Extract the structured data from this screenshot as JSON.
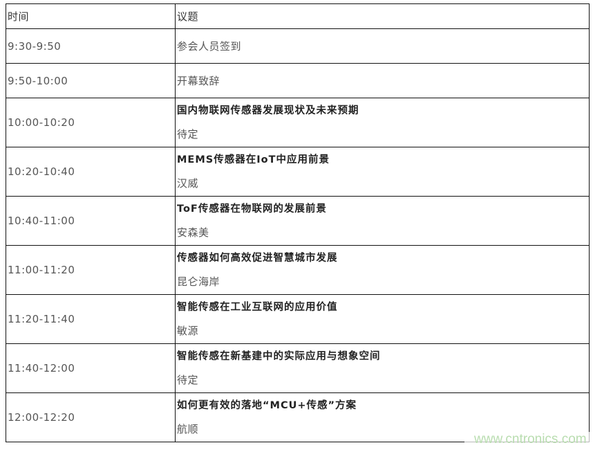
{
  "header": {
    "time": "时间",
    "topic": "议题"
  },
  "rows": [
    {
      "time": "9:30-9:50",
      "topic": "参会人员签到"
    },
    {
      "time": "9:50-10:00",
      "topic": "开幕致辞"
    },
    {
      "time": "10:00-10:20",
      "topic": "国内物联网传感器发展现状及未来预期",
      "speaker": "待定"
    },
    {
      "time": "10:20-10:40",
      "topic": "MEMS传感器在IoT中应用前景",
      "speaker": "汉威"
    },
    {
      "time": "10:40-11:00",
      "topic": "ToF传感器在物联网的发展前景",
      "speaker": "安森美"
    },
    {
      "time": "11:00-11:20",
      "topic": "传感器如何高效促进智慧城市发展",
      "speaker": "昆仑海岸"
    },
    {
      "time": "11:20-11:40",
      "topic": "智能传感在工业互联网的应用价值",
      "speaker": "敏源"
    },
    {
      "time": "11:40-12:00",
      "topic": "智能传感在新基建中的实际应用与想象空间",
      "speaker": "待定"
    },
    {
      "time": "12:00-12:20",
      "topic": "如何更有效的落地“MCU+传感”方案",
      "speaker": "航顺"
    }
  ],
  "watermark": "www.cntronics.com"
}
